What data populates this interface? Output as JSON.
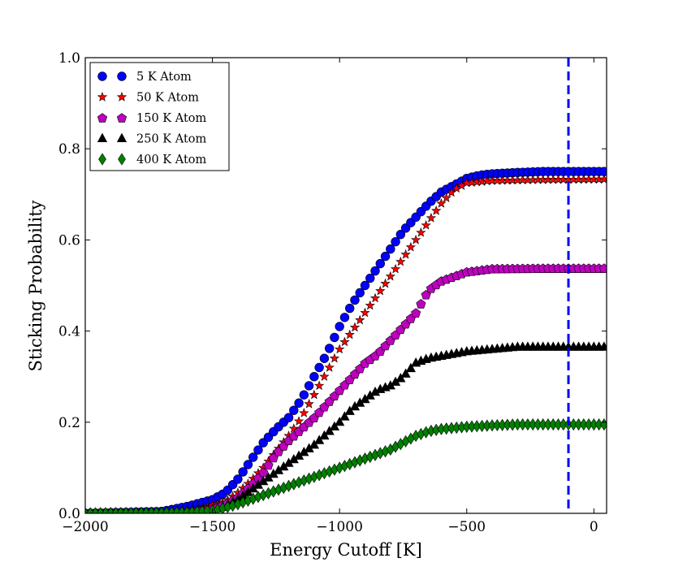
{
  "chart_data": {
    "type": "scatter",
    "title": "",
    "xlabel": "Energy Cutoff [K]",
    "ylabel": "Sticking Probability",
    "xlim": [
      -2000,
      50
    ],
    "ylim": [
      0.0,
      1.0
    ],
    "x_ticks": [
      -2000,
      -1500,
      -1000,
      -500,
      0
    ],
    "x_tick_labels": [
      "−2000",
      "−1500",
      "−1000",
      "−500",
      "0"
    ],
    "y_ticks": [
      0.0,
      0.2,
      0.4,
      0.6,
      0.8,
      1.0
    ],
    "y_tick_labels": [
      "0.0",
      "0.2",
      "0.4",
      "0.6",
      "0.8",
      "1.0"
    ],
    "grid": false,
    "legend_position": "top-left",
    "reference_line": {
      "x": -100,
      "color": "#0000ff",
      "style": "dashed"
    },
    "x_step": 20,
    "series": [
      {
        "name": "5 K Atom",
        "marker": "circle",
        "color": "#0000ff",
        "knots": [
          [
            -2000,
            0.0
          ],
          [
            -1700,
            0.004
          ],
          [
            -1600,
            0.015
          ],
          [
            -1500,
            0.03
          ],
          [
            -1450,
            0.045
          ],
          [
            -1400,
            0.075
          ],
          [
            -1350,
            0.115
          ],
          [
            -1300,
            0.155
          ],
          [
            -1250,
            0.185
          ],
          [
            -1200,
            0.21
          ],
          [
            -1150,
            0.25
          ],
          [
            -1100,
            0.3
          ],
          [
            -1050,
            0.35
          ],
          [
            -1000,
            0.41
          ],
          [
            -950,
            0.46
          ],
          [
            -900,
            0.5
          ],
          [
            -850,
            0.54
          ],
          [
            -800,
            0.58
          ],
          [
            -750,
            0.62
          ],
          [
            -700,
            0.65
          ],
          [
            -650,
            0.68
          ],
          [
            -600,
            0.705
          ],
          [
            -550,
            0.72
          ],
          [
            -500,
            0.735
          ],
          [
            -450,
            0.742
          ],
          [
            -400,
            0.745
          ],
          [
            -300,
            0.748
          ],
          [
            -200,
            0.75
          ],
          [
            -100,
            0.75
          ],
          [
            50,
            0.75
          ]
        ]
      },
      {
        "name": "50 K Atom",
        "marker": "star",
        "color": "#ff0000",
        "knots": [
          [
            -2000,
            0.0
          ],
          [
            -1650,
            0.003
          ],
          [
            -1550,
            0.01
          ],
          [
            -1450,
            0.025
          ],
          [
            -1400,
            0.045
          ],
          [
            -1350,
            0.07
          ],
          [
            -1300,
            0.1
          ],
          [
            -1250,
            0.135
          ],
          [
            -1200,
            0.17
          ],
          [
            -1150,
            0.21
          ],
          [
            -1100,
            0.26
          ],
          [
            -1050,
            0.31
          ],
          [
            -1000,
            0.36
          ],
          [
            -950,
            0.4
          ],
          [
            -900,
            0.44
          ],
          [
            -850,
            0.48
          ],
          [
            -800,
            0.52
          ],
          [
            -750,
            0.56
          ],
          [
            -700,
            0.6
          ],
          [
            -650,
            0.64
          ],
          [
            -600,
            0.68
          ],
          [
            -550,
            0.71
          ],
          [
            -500,
            0.725
          ],
          [
            -400,
            0.73
          ],
          [
            -200,
            0.732
          ],
          [
            50,
            0.733
          ]
        ]
      },
      {
        "name": "150 K Atom",
        "marker": "pentagon",
        "color": "#bf00bf",
        "knots": [
          [
            -2000,
            0.0
          ],
          [
            -1600,
            0.003
          ],
          [
            -1500,
            0.01
          ],
          [
            -1450,
            0.02
          ],
          [
            -1400,
            0.035
          ],
          [
            -1350,
            0.06
          ],
          [
            -1300,
            0.09
          ],
          [
            -1250,
            0.13
          ],
          [
            -1200,
            0.16
          ],
          [
            -1150,
            0.185
          ],
          [
            -1100,
            0.21
          ],
          [
            -1050,
            0.24
          ],
          [
            -1000,
            0.27
          ],
          [
            -950,
            0.3
          ],
          [
            -900,
            0.33
          ],
          [
            -850,
            0.35
          ],
          [
            -800,
            0.38
          ],
          [
            -750,
            0.41
          ],
          [
            -700,
            0.44
          ],
          [
            -650,
            0.49
          ],
          [
            -600,
            0.51
          ],
          [
            -550,
            0.52
          ],
          [
            -500,
            0.53
          ],
          [
            -400,
            0.537
          ],
          [
            -200,
            0.538
          ],
          [
            50,
            0.538
          ]
        ]
      },
      {
        "name": "250 K Atom",
        "marker": "triangle",
        "color": "#000000",
        "knots": [
          [
            -2000,
            0.0
          ],
          [
            -1600,
            0.002
          ],
          [
            -1500,
            0.008
          ],
          [
            -1450,
            0.015
          ],
          [
            -1400,
            0.03
          ],
          [
            -1350,
            0.05
          ],
          [
            -1300,
            0.07
          ],
          [
            -1250,
            0.09
          ],
          [
            -1200,
            0.11
          ],
          [
            -1150,
            0.13
          ],
          [
            -1100,
            0.15
          ],
          [
            -1050,
            0.175
          ],
          [
            -1000,
            0.2
          ],
          [
            -950,
            0.23
          ],
          [
            -900,
            0.25
          ],
          [
            -850,
            0.27
          ],
          [
            -800,
            0.28
          ],
          [
            -750,
            0.3
          ],
          [
            -700,
            0.33
          ],
          [
            -650,
            0.34
          ],
          [
            -600,
            0.345
          ],
          [
            -500,
            0.355
          ],
          [
            -400,
            0.36
          ],
          [
            -300,
            0.365
          ],
          [
            -200,
            0.365
          ],
          [
            50,
            0.365
          ]
        ]
      },
      {
        "name": "400 K Atom",
        "marker": "diamond",
        "color": "#008000",
        "knots": [
          [
            -2000,
            0.0
          ],
          [
            -1600,
            0.002
          ],
          [
            -1500,
            0.006
          ],
          [
            -1450,
            0.012
          ],
          [
            -1400,
            0.02
          ],
          [
            -1350,
            0.03
          ],
          [
            -1300,
            0.04
          ],
          [
            -1250,
            0.05
          ],
          [
            -1200,
            0.06
          ],
          [
            -1150,
            0.07
          ],
          [
            -1100,
            0.08
          ],
          [
            -1050,
            0.09
          ],
          [
            -1000,
            0.1
          ],
          [
            -950,
            0.11
          ],
          [
            -900,
            0.12
          ],
          [
            -850,
            0.13
          ],
          [
            -800,
            0.14
          ],
          [
            -750,
            0.155
          ],
          [
            -700,
            0.17
          ],
          [
            -650,
            0.18
          ],
          [
            -600,
            0.185
          ],
          [
            -500,
            0.19
          ],
          [
            -400,
            0.193
          ],
          [
            -300,
            0.195
          ],
          [
            50,
            0.195
          ]
        ]
      }
    ]
  }
}
